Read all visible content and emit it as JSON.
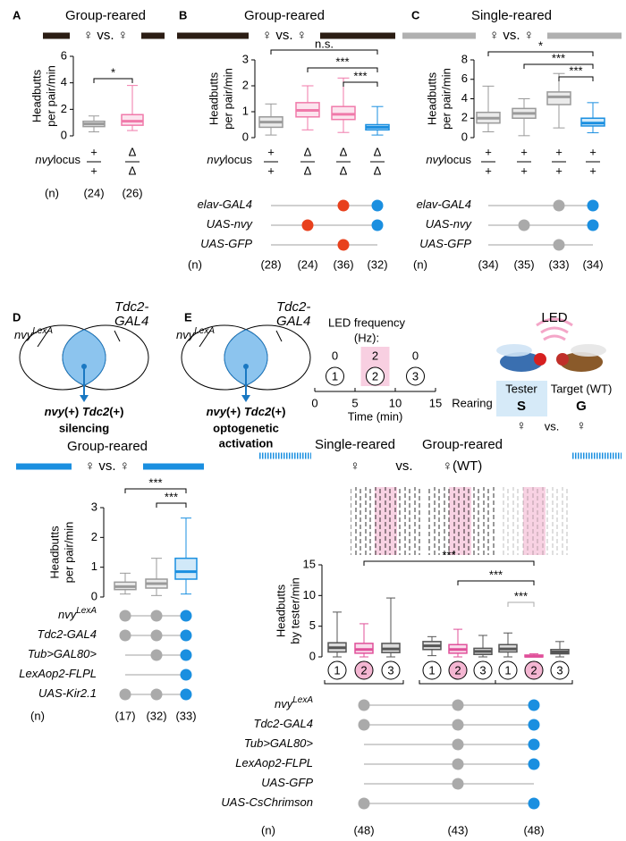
{
  "chart_data": [
    {
      "type": "box",
      "panel": "A",
      "header": "Group-reared",
      "comparison": "♀ vs. ♀",
      "header_color": "#2b1d14",
      "ylabel": [
        "Headbutts",
        "per pair/min"
      ],
      "ylim": [
        0,
        6
      ],
      "yticks": [
        0,
        2,
        4,
        6
      ],
      "boxes": [
        {
          "min": 0.3,
          "q1": 0.7,
          "median": 0.9,
          "q3": 1.1,
          "max": 1.5,
          "color": "#9a9a9a"
        },
        {
          "min": 0.4,
          "q1": 0.8,
          "median": 1.1,
          "q3": 1.6,
          "max": 3.8,
          "color": "#f07aaa"
        }
      ],
      "significance": [
        {
          "label": "*",
          "pair": [
            0,
            1
          ]
        }
      ],
      "locus_label": {
        "gene": "nvy",
        "word": "locus"
      },
      "locus": [
        {
          "top": "+",
          "bottom": "+"
        },
        {
          "top": "Δ",
          "bottom": "Δ"
        }
      ],
      "genotypes": [],
      "n_label": "(n)",
      "n": [
        "(24)",
        "(26)"
      ]
    },
    {
      "type": "box",
      "panel": "B",
      "header": "Group-reared",
      "comparison": "♀ vs. ♀",
      "header_color": "#2b1d14",
      "ylabel": [
        "Headbutts",
        "per pair/min"
      ],
      "ylim": [
        0,
        3
      ],
      "yticks": [
        0,
        1,
        2,
        3
      ],
      "boxes": [
        {
          "min": 0.1,
          "q1": 0.4,
          "median": 0.6,
          "q3": 0.8,
          "max": 1.3,
          "color": "#9a9a9a"
        },
        {
          "min": 0.3,
          "q1": 0.8,
          "median": 1.05,
          "q3": 1.35,
          "max": 2.0,
          "color": "#f07aaa"
        },
        {
          "min": 0.2,
          "q1": 0.7,
          "median": 0.9,
          "q3": 1.2,
          "max": 2.3,
          "color": "#f07aaa"
        },
        {
          "min": 0.1,
          "q1": 0.3,
          "median": 0.4,
          "q3": 0.5,
          "max": 1.2,
          "color": "#1a8fe0"
        }
      ],
      "significance": [
        {
          "label": "n.s.",
          "pair": [
            0,
            3
          ]
        },
        {
          "label": "***",
          "pair": [
            1,
            3
          ]
        },
        {
          "label": "***",
          "pair": [
            2,
            3
          ]
        }
      ],
      "locus_label": {
        "gene": "nvy",
        "word": "locus"
      },
      "locus": [
        {
          "top": "+",
          "bottom": "+"
        },
        {
          "top": "Δ",
          "bottom": "Δ"
        },
        {
          "top": "Δ",
          "bottom": "Δ"
        },
        {
          "top": "Δ",
          "bottom": "Δ"
        }
      ],
      "genotypes": [
        {
          "label": "elav-GAL4",
          "dots": [
            null,
            null,
            "#e8401c",
            "#1a8fe0"
          ]
        },
        {
          "label": "UAS-nvy",
          "dots": [
            null,
            "#e8401c",
            null,
            "#1a8fe0"
          ]
        },
        {
          "label": "UAS-GFP",
          "dots": [
            null,
            null,
            "#e8401c",
            null
          ]
        }
      ],
      "n_label": "(n)",
      "n": [
        "(28)",
        "(24)",
        "(36)",
        "(32)"
      ]
    },
    {
      "type": "box",
      "panel": "C",
      "header": "Single-reared",
      "comparison": "♀ vs. ♀",
      "header_color": "#b0b0b0",
      "ylabel": [
        "Headbutts",
        "per pair/min"
      ],
      "ylim": [
        0,
        8
      ],
      "yticks": [
        0,
        2,
        4,
        6,
        8
      ],
      "boxes": [
        {
          "min": 0.6,
          "q1": 1.5,
          "median": 2.0,
          "q3": 2.6,
          "max": 5.3,
          "color": "#9a9a9a"
        },
        {
          "min": 0.2,
          "q1": 2.0,
          "median": 2.5,
          "q3": 3.0,
          "max": 4.0,
          "color": "#9a9a9a"
        },
        {
          "min": 1.0,
          "q1": 3.4,
          "median": 4.2,
          "q3": 4.7,
          "max": 6.6,
          "color": "#9a9a9a"
        },
        {
          "min": 0.5,
          "q1": 1.2,
          "median": 1.5,
          "q3": 2.0,
          "max": 3.6,
          "color": "#1a8fe0"
        }
      ],
      "significance": [
        {
          "label": "*",
          "pair": [
            0,
            3
          ]
        },
        {
          "label": "***",
          "pair": [
            1,
            3
          ]
        },
        {
          "label": "***",
          "pair": [
            2,
            3
          ]
        }
      ],
      "locus_label": {
        "gene": "nvy",
        "word": "locus"
      },
      "locus": [
        {
          "top": "+",
          "bottom": "+"
        },
        {
          "top": "+",
          "bottom": "+"
        },
        {
          "top": "+",
          "bottom": "+"
        },
        {
          "top": "+",
          "bottom": "+"
        }
      ],
      "genotypes": [
        {
          "label": "elav-GAL4",
          "dots": [
            null,
            null,
            "#aaaaaa",
            "#1a8fe0"
          ]
        },
        {
          "label": "UAS-nvy",
          "dots": [
            null,
            "#aaaaaa",
            null,
            "#1a8fe0"
          ]
        },
        {
          "label": "UAS-GFP",
          "dots": [
            null,
            null,
            "#aaaaaa",
            null
          ]
        }
      ],
      "n_label": "(n)",
      "n": [
        "(34)",
        "(35)",
        "(33)",
        "(34)"
      ]
    },
    {
      "type": "box",
      "panel": "D",
      "diagram": {
        "left": {
          "label": "nvy",
          "sup": "LexA"
        },
        "right": [
          "Tdc2-",
          "GAL4"
        ],
        "result": [
          "nvy",
          "(+) ",
          "Tdc2",
          "(+)"
        ],
        "caption": [
          "silencing"
        ]
      },
      "header": "Group-reared",
      "comparison": "♀ vs. ♀",
      "header_color": "#1a8fe0",
      "ylabel": [
        "Headbutts",
        "per pair/min"
      ],
      "ylim": [
        0,
        3
      ],
      "yticks": [
        0,
        1,
        2,
        3
      ],
      "boxes": [
        {
          "min": 0.1,
          "q1": 0.25,
          "median": 0.35,
          "q3": 0.5,
          "max": 0.8,
          "color": "#9a9a9a"
        },
        {
          "min": 0.05,
          "q1": 0.3,
          "median": 0.45,
          "q3": 0.6,
          "max": 1.3,
          "color": "#9a9a9a"
        },
        {
          "min": 0.1,
          "q1": 0.6,
          "median": 0.85,
          "q3": 1.3,
          "max": 2.65,
          "color": "#1a8fe0"
        }
      ],
      "significance": [
        {
          "label": "***",
          "pair": [
            0,
            2
          ]
        },
        {
          "label": "***",
          "pair": [
            1,
            2
          ]
        }
      ],
      "genotypes": [
        {
          "label": "nvy",
          "sup": "LexA",
          "dots": [
            "#aaaaaa",
            "#aaaaaa",
            "#1a8fe0"
          ]
        },
        {
          "label": "Tdc2-GAL4",
          "dots": [
            "#aaaaaa",
            "#aaaaaa",
            "#1a8fe0"
          ]
        },
        {
          "label": "Tub>GAL80>",
          "dots": [
            null,
            "#aaaaaa",
            "#1a8fe0"
          ]
        },
        {
          "label": "LexAop2-FLPL",
          "dots": [
            null,
            null,
            "#1a8fe0"
          ]
        },
        {
          "label": "UAS-Kir2.1",
          "dots": [
            "#aaaaaa",
            "#aaaaaa",
            "#1a8fe0"
          ]
        }
      ],
      "n_label": "(n)",
      "n": [
        "(17)",
        "(32)",
        "(33)"
      ]
    },
    {
      "type": "box",
      "panel": "E",
      "diagram": {
        "left": {
          "label": "nvy",
          "sup": "LexA"
        },
        "right": [
          "Tdc2-",
          "GAL4"
        ],
        "result": [
          "nvy",
          "(+) ",
          "Tdc2",
          "(+)"
        ],
        "caption": [
          "optogenetic",
          "activation"
        ]
      },
      "led": {
        "title": [
          "LED frequency",
          "(Hz):"
        ],
        "frequencies": [
          0,
          2,
          0
        ],
        "epochs": [
          "1",
          "2",
          "3"
        ],
        "xlim": [
          0,
          15
        ],
        "xticks": [
          0,
          5,
          10,
          15
        ],
        "xlabel": "Time (min)"
      },
      "fly": {
        "light": "LED",
        "tester": "Tester",
        "target": "Target (WT)",
        "rearing": "Rearing",
        "tester_rearing": "S",
        "target_rearing": "G",
        "tester_sex": "♀",
        "vs": "vs.",
        "target_sex": "♀"
      },
      "header": {
        "left": "Single-reared",
        "left_sex": "♀",
        "vs": "vs.",
        "right": "Group-reared",
        "right_sex": "♀(WT)"
      },
      "header_color": "#1a8fe0",
      "ylabel": [
        "Headbutts",
        "by tester/min"
      ],
      "ylim": [
        0,
        15
      ],
      "yticks": [
        0,
        5,
        10,
        15
      ],
      "categories": [
        "1",
        "2",
        "3",
        "1",
        "2",
        "3",
        "1",
        "2",
        "3"
      ],
      "boxes": [
        {
          "min": 0,
          "q1": 0.8,
          "median": 1.5,
          "q3": 2.3,
          "max": 7.3,
          "color": "#555555"
        },
        {
          "min": 0,
          "q1": 0.6,
          "median": 1.2,
          "q3": 2.2,
          "max": 5.4,
          "color": "#e0509a"
        },
        {
          "min": 0,
          "q1": 0.7,
          "median": 1.3,
          "q3": 2.2,
          "max": 9.6,
          "color": "#555555"
        },
        {
          "min": 0.2,
          "q1": 1.2,
          "median": 1.8,
          "q3": 2.5,
          "max": 3.3,
          "color": "#555555"
        },
        {
          "min": 0,
          "q1": 0.6,
          "median": 1.2,
          "q3": 2.0,
          "max": 4.5,
          "color": "#e0509a"
        },
        {
          "min": 0,
          "q1": 0.4,
          "median": 0.9,
          "q3": 1.4,
          "max": 3.5,
          "color": "#555555"
        },
        {
          "min": 0,
          "q1": 0.8,
          "median": 1.3,
          "q3": 2.0,
          "max": 3.9,
          "color": "#555555"
        },
        {
          "min": 0,
          "q1": 0,
          "median": 0.1,
          "q3": 0.3,
          "max": 0.5,
          "color": "#e0509a"
        },
        {
          "min": 0,
          "q1": 0.5,
          "median": 0.8,
          "q3": 1.2,
          "max": 2.5,
          "color": "#555555"
        }
      ],
      "significance": [
        {
          "label": "***",
          "pair": [
            1,
            7
          ]
        },
        {
          "label": "***",
          "pair": [
            4,
            7
          ]
        },
        {
          "label": "***",
          "pair": [
            6,
            7
          ],
          "color": "#aaaaaa"
        }
      ],
      "genotypes": [
        {
          "label": "nvy",
          "sup": "LexA",
          "dots": [
            "#aaaaaa",
            "#aaaaaa",
            "#1a8fe0"
          ]
        },
        {
          "label": "Tdc2-GAL4",
          "dots": [
            "#aaaaaa",
            "#aaaaaa",
            "#1a8fe0"
          ]
        },
        {
          "label": "Tub>GAL80>",
          "dots": [
            null,
            "#aaaaaa",
            "#1a8fe0"
          ]
        },
        {
          "label": "LexAop2-FLPL",
          "dots": [
            null,
            "#aaaaaa",
            "#1a8fe0"
          ]
        },
        {
          "label": "UAS-GFP",
          "dots": [
            null,
            "#aaaaaa",
            null
          ]
        },
        {
          "label": "UAS-CsChrimson",
          "dots": [
            "#aaaaaa",
            null,
            "#1a8fe0"
          ]
        }
      ],
      "n_label": "(n)",
      "n": [
        "(48)",
        "(43)",
        "(48)"
      ]
    }
  ]
}
